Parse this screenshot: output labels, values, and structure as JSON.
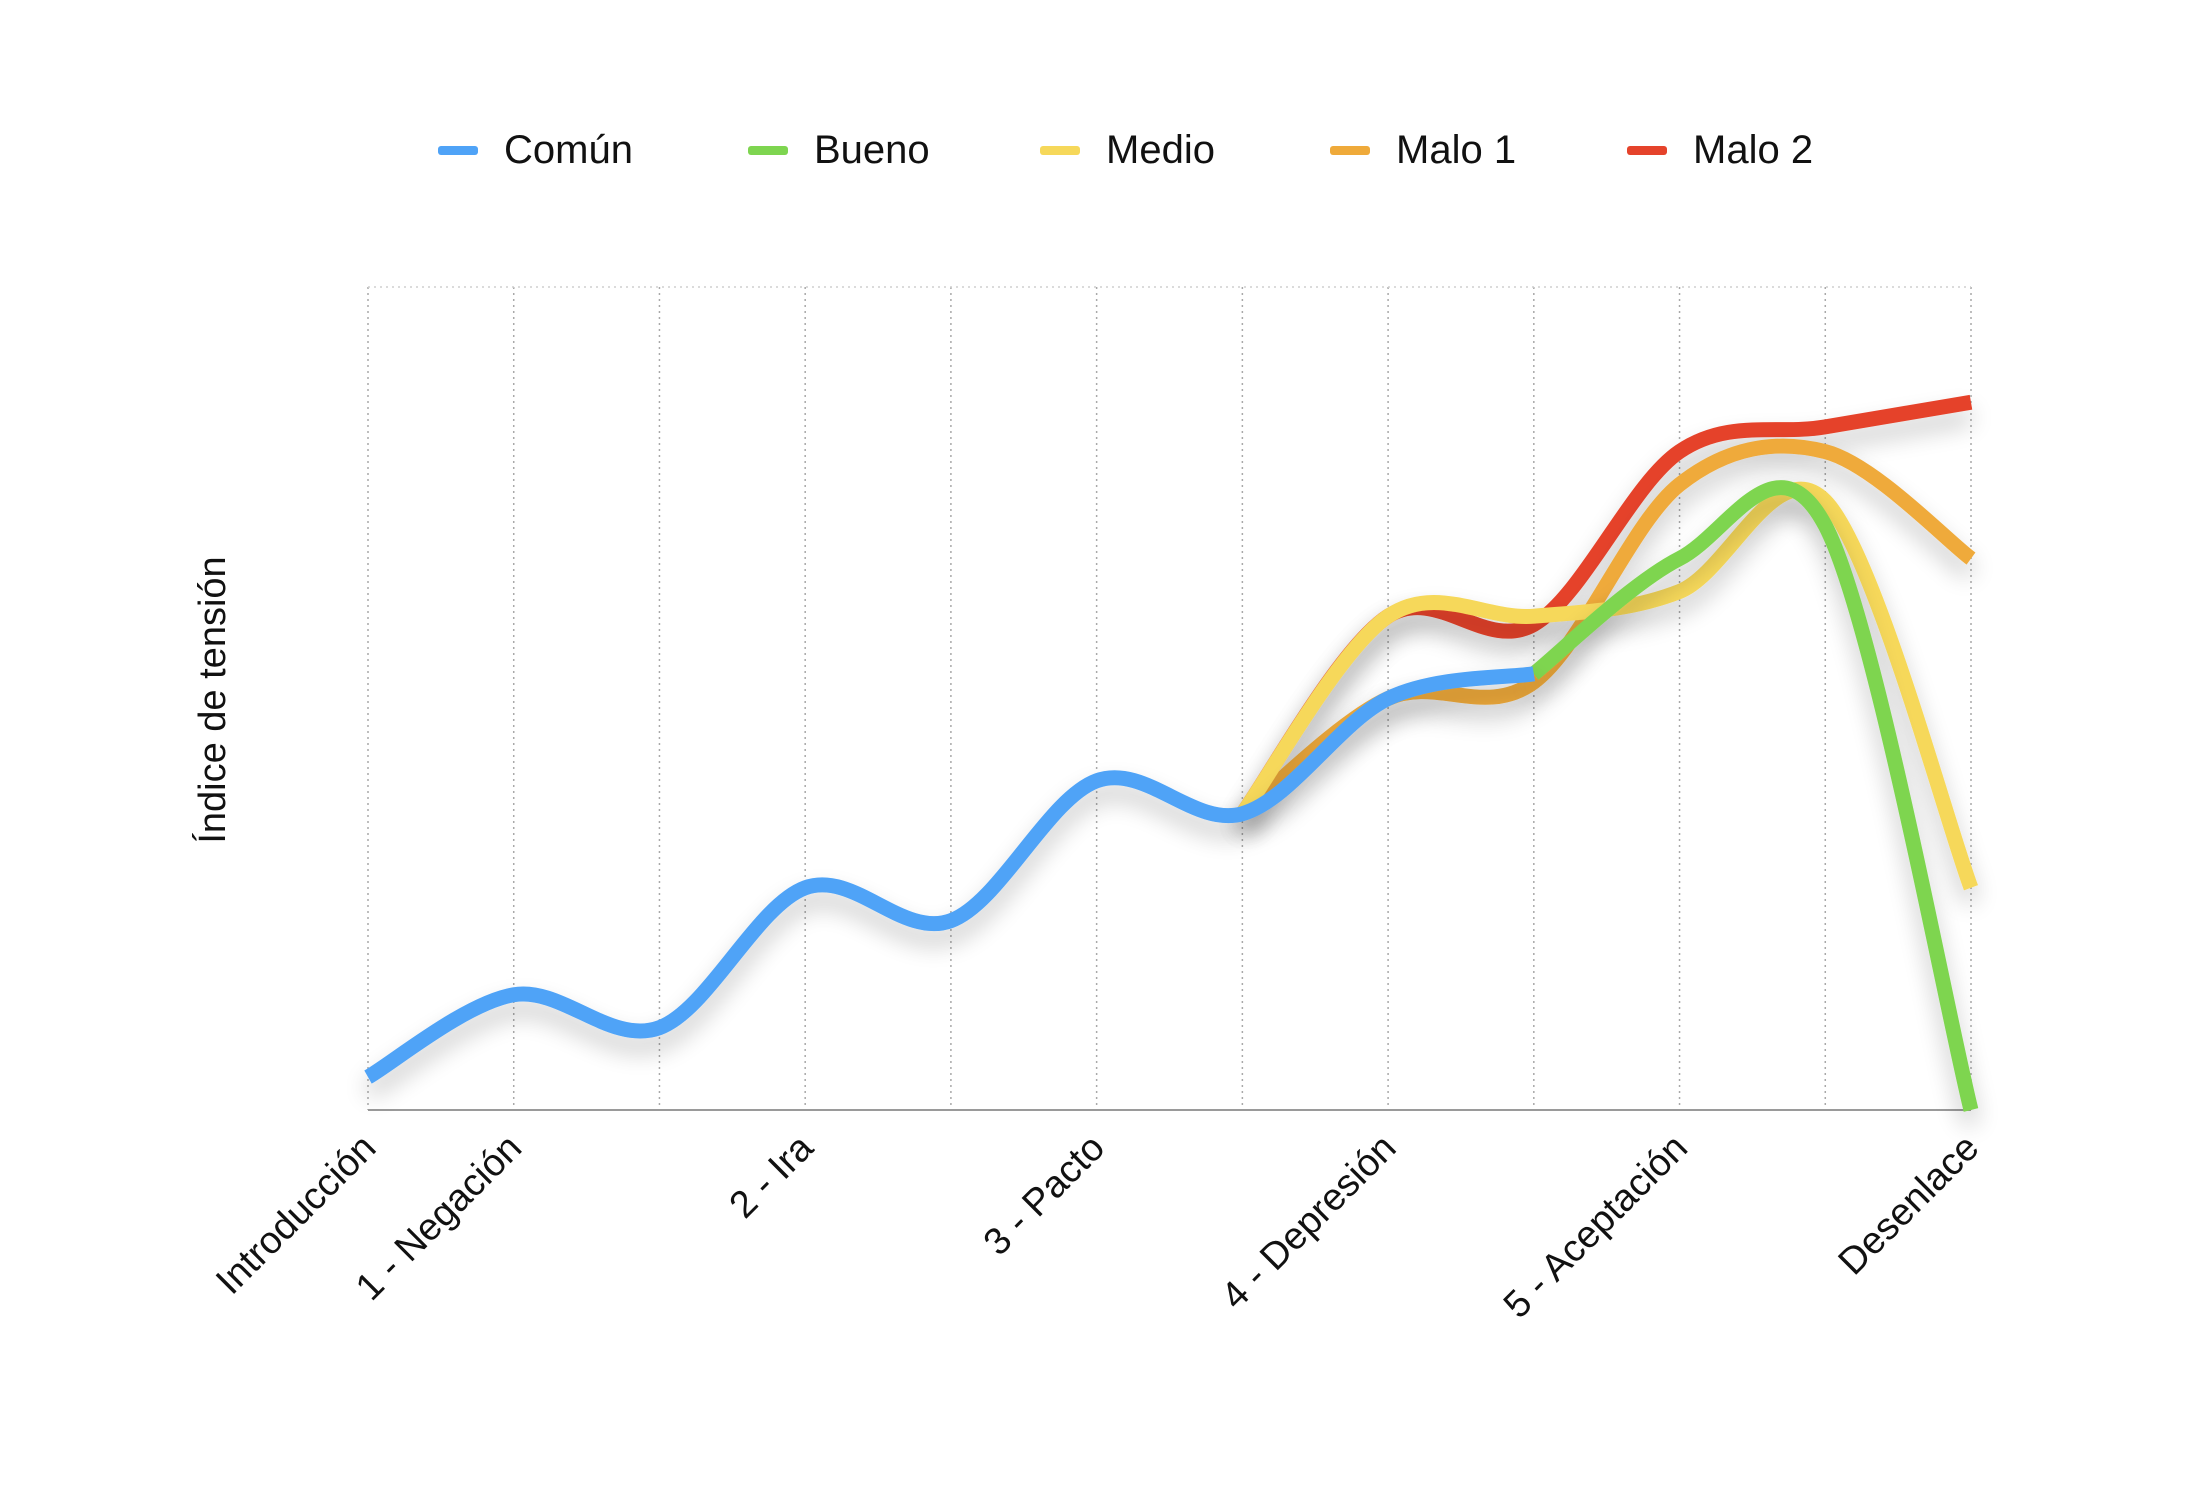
{
  "chart_data": {
    "type": "line",
    "categories": [
      "Introducción",
      "1 - Negación",
      "",
      "2 - Ira",
      "",
      "3 - Pacto",
      "",
      "4 - Depresión",
      "",
      "5 - Aceptación",
      "",
      "Desenlace"
    ],
    "xlabel": "",
    "ylabel": "Índice de tensión",
    "ylim": [
      0,
      100
    ],
    "grid": "vertical dotted",
    "legend_position": "top",
    "series": [
      {
        "name": "Malo 2",
        "color": "#E5432B",
        "start": 6,
        "values": [
          null,
          null,
          null,
          null,
          null,
          null,
          36,
          60,
          59,
          80,
          83,
          86
        ]
      },
      {
        "name": "Malo 1",
        "color": "#EFAA3A",
        "start": 6,
        "values": [
          null,
          null,
          null,
          null,
          null,
          null,
          36,
          50,
          52,
          76,
          80,
          67
        ]
      },
      {
        "name": "Medio",
        "color": "#F6D85A",
        "start": 6,
        "values": [
          null,
          null,
          null,
          null,
          null,
          null,
          36,
          60,
          60,
          63,
          74,
          27
        ]
      },
      {
        "name": "Bueno",
        "color": "#7ED550",
        "start": 8,
        "values": [
          null,
          null,
          null,
          null,
          null,
          null,
          null,
          null,
          53,
          67,
          71,
          0
        ]
      },
      {
        "name": "Común",
        "color": "#4FA3F7",
        "start": 0,
        "values": [
          4,
          14,
          10,
          27,
          23,
          40,
          36,
          50,
          53,
          null,
          null,
          null
        ]
      }
    ],
    "legend_order": [
      "Común",
      "Bueno",
      "Medio",
      "Malo 1",
      "Malo 2"
    ]
  }
}
